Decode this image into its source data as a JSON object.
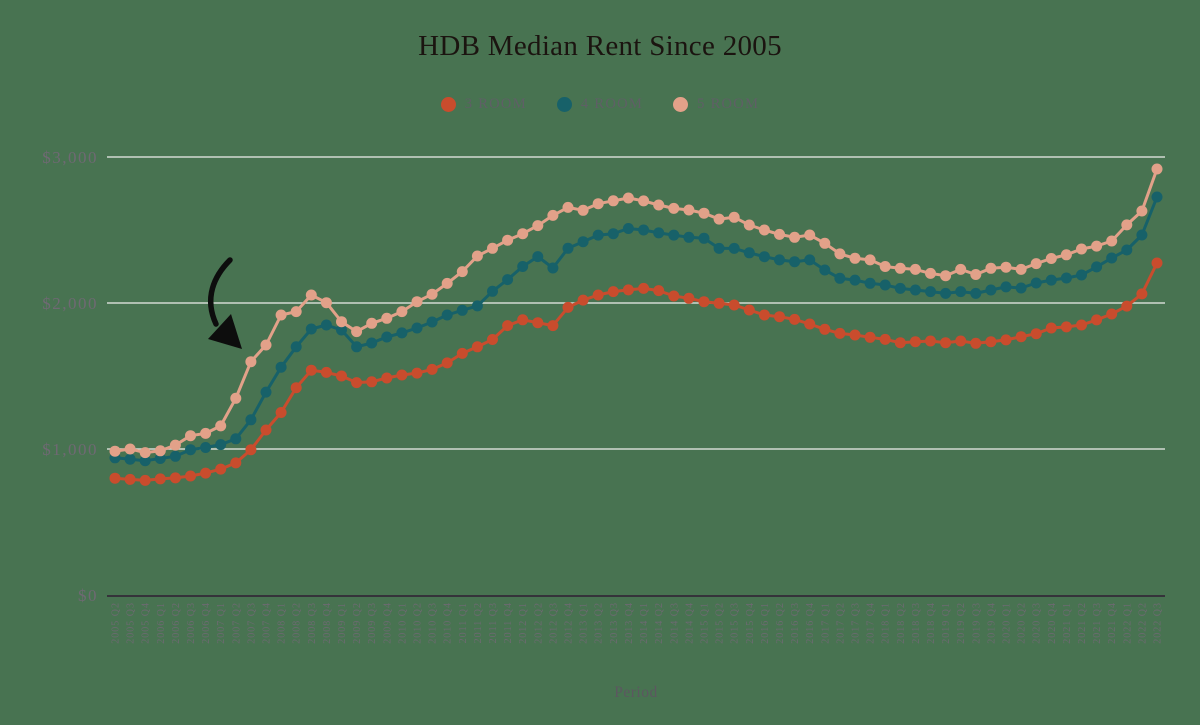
{
  "title": "HDB Median Rent Since 2005",
  "xlabel": "Period",
  "colors": {
    "background": "#487351",
    "gridline": "#d3d9d2",
    "axis_line": "#35333a",
    "title_text": "#1b1410",
    "tick_text": "#6f6973",
    "legend_text": "#5f5f66",
    "annotation": "#0d0d0d"
  },
  "chart_data": {
    "type": "line",
    "title": "HDB Median Rent Since 2005",
    "xlabel": "Period",
    "ylabel": "",
    "ylim": [
      0,
      3000
    ],
    "grid": true,
    "legend_position": "top",
    "y_ticks": [
      {
        "label": "$0",
        "value": 0
      },
      {
        "label": "$1,000",
        "value": 1000
      },
      {
        "label": "$2,000",
        "value": 2000
      },
      {
        "label": "$3,000",
        "value": 3000
      }
    ],
    "categories": [
      "2005 Q2",
      "2005 Q3",
      "2005 Q4",
      "2006 Q1",
      "2006 Q2",
      "2006 Q3",
      "2006 Q4",
      "2007 Q1",
      "2007 Q2",
      "2007 Q3",
      "2007 Q4",
      "2008 Q1",
      "2008 Q2",
      "2008 Q3",
      "2008 Q4",
      "2009 Q1",
      "2009 Q2",
      "2009 Q3",
      "2009 Q4",
      "2010 Q1",
      "2010 Q2",
      "2010 Q3",
      "2010 Q4",
      "2011 Q1",
      "2011 Q2",
      "2011 Q3",
      "2011 Q4",
      "2012 Q1",
      "2012 Q2",
      "2012 Q3",
      "2012 Q4",
      "2013 Q1",
      "2013 Q2",
      "2013 Q3",
      "2013 Q4",
      "2014 Q1",
      "2014 Q2",
      "2014 Q3",
      "2014 Q4",
      "2015 Q1",
      "2015 Q2",
      "2015 Q3",
      "2015 Q4",
      "2016 Q1",
      "2016 Q2",
      "2016 Q3",
      "2016 Q4",
      "2017 Q1",
      "2017 Q2",
      "2017 Q3",
      "2017 Q4",
      "2018 Q1",
      "2018 Q2",
      "2018 Q3",
      "2018 Q4",
      "2019 Q1",
      "2019 Q2",
      "2019 Q3",
      "2019 Q4",
      "2020 Q1",
      "2020 Q2",
      "2020 Q3",
      "2020 Q4",
      "2021 Q1",
      "2021 Q2",
      "2021 Q3",
      "2021 Q4",
      "2022 Q1",
      "2022 Q2",
      "2022 Q3"
    ],
    "series": [
      {
        "name": "3 ROOM",
        "color": "#c94c2d",
        "values": [
          800,
          792,
          785,
          795,
          802,
          815,
          835,
          862,
          905,
          995,
          1130,
          1250,
          1420,
          1540,
          1525,
          1500,
          1455,
          1460,
          1486,
          1507,
          1520,
          1545,
          1590,
          1655,
          1700,
          1750,
          1845,
          1885,
          1865,
          1845,
          1970,
          2020,
          2055,
          2078,
          2090,
          2100,
          2085,
          2048,
          2032,
          2009,
          1998,
          1986,
          1952,
          1918,
          1906,
          1888,
          1856,
          1820,
          1792,
          1781,
          1765,
          1751,
          1728,
          1735,
          1740,
          1728,
          1740,
          1724,
          1735,
          1747,
          1769,
          1790,
          1829,
          1836,
          1849,
          1884,
          1925,
          1979,
          2062,
          2274
        ]
      },
      {
        "name": "4 ROOM",
        "color": "#176169",
        "values": [
          940,
          930,
          920,
          935,
          950,
          995,
          1010,
          1030,
          1070,
          1200,
          1390,
          1560,
          1700,
          1822,
          1849,
          1815,
          1700,
          1726,
          1767,
          1795,
          1829,
          1870,
          1918,
          1950,
          1980,
          2080,
          2160,
          2250,
          2318,
          2240,
          2375,
          2420,
          2465,
          2475,
          2510,
          2500,
          2480,
          2465,
          2450,
          2443,
          2374,
          2374,
          2344,
          2317,
          2295,
          2283,
          2295,
          2226,
          2169,
          2157,
          2135,
          2123,
          2100,
          2089,
          2078,
          2066,
          2078,
          2066,
          2089,
          2110,
          2103,
          2137,
          2157,
          2171,
          2192,
          2247,
          2308,
          2363,
          2466,
          2726
        ]
      },
      {
        "name": "5 ROOM",
        "color": "#e2a189",
        "values": [
          985,
          1000,
          975,
          988,
          1027,
          1091,
          1107,
          1158,
          1347,
          1598,
          1712,
          1918,
          1941,
          2055,
          2002,
          1872,
          1804,
          1861,
          1895,
          1941,
          2009,
          2060,
          2134,
          2215,
          2322,
          2375,
          2430,
          2475,
          2530,
          2600,
          2655,
          2635,
          2680,
          2700,
          2719,
          2699,
          2671,
          2648,
          2637,
          2615,
          2575,
          2587,
          2534,
          2500,
          2470,
          2450,
          2466,
          2409,
          2336,
          2306,
          2295,
          2250,
          2238,
          2230,
          2203,
          2187,
          2230,
          2195,
          2238,
          2245,
          2230,
          2270,
          2305,
          2330,
          2370,
          2390,
          2425,
          2535,
          2630,
          2918
        ]
      }
    ],
    "annotations": [
      {
        "type": "arrow",
        "target": "steep 2007-2008 rise of the 5 ROOM series"
      }
    ]
  }
}
